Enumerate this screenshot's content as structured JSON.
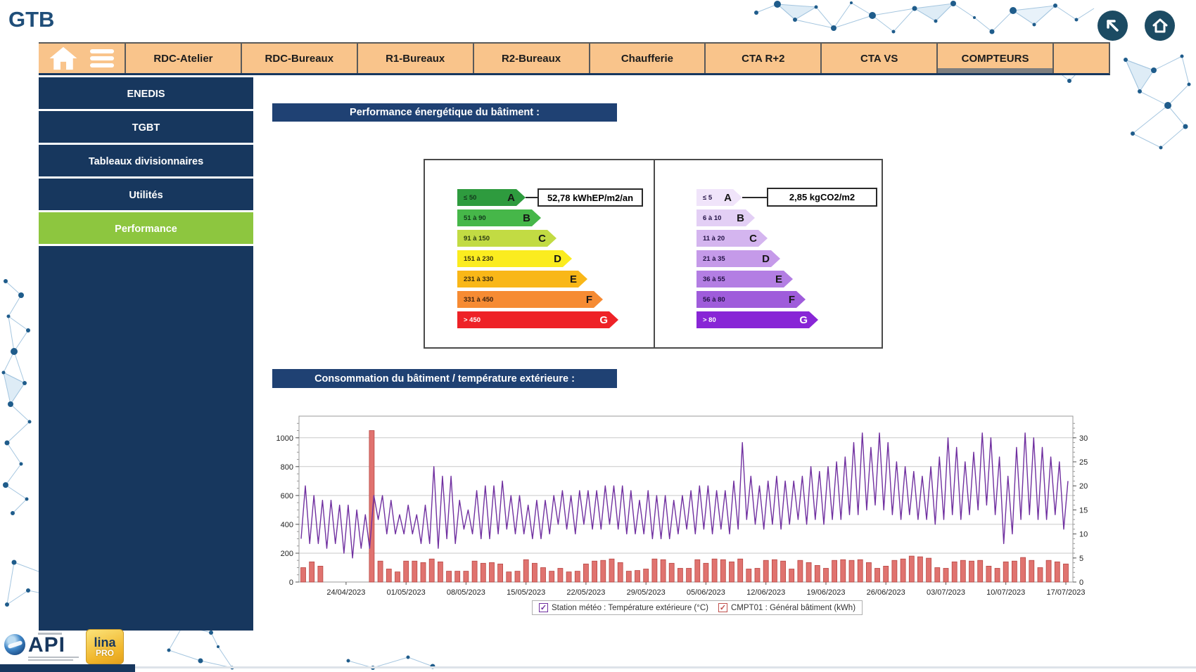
{
  "app": {
    "title": "GTB"
  },
  "top_buttons": {
    "back_icon": "arrow-up-left",
    "home_icon": "house"
  },
  "topbar": {
    "tabs": [
      {
        "label": "RDC-Atelier",
        "active": false
      },
      {
        "label": "RDC-Bureaux",
        "active": false
      },
      {
        "label": "R1-Bureaux",
        "active": false
      },
      {
        "label": "R2-Bureaux",
        "active": false
      },
      {
        "label": "Chaufferie",
        "active": false
      },
      {
        "label": "CTA R+2",
        "active": false
      },
      {
        "label": "CTA VS",
        "active": false
      },
      {
        "label": "COMPTEURS",
        "active": true
      }
    ]
  },
  "sidebar": {
    "items": [
      {
        "label": "ENEDIS",
        "active": false
      },
      {
        "label": "TGBT",
        "active": false
      },
      {
        "label": "Tableaux divisionnaires",
        "active": false
      },
      {
        "label": "Utilités",
        "active": false
      },
      {
        "label": "Performance",
        "active": true
      }
    ],
    "active_color": "#8DC63F"
  },
  "sections": {
    "energy_header": "Performance énergétique du bâtiment :",
    "consumption_header": "Consommation du bâtiment / température extérieure :"
  },
  "energy_scale": {
    "value_label": "52,78 kWhEP/m2/an",
    "classes": [
      {
        "range": "≤ 50",
        "letter": "A",
        "color": "#2E9B3E",
        "text": "#123A1C"
      },
      {
        "range": "51 à 90",
        "letter": "B",
        "color": "#46B749",
        "text": "#123A1C"
      },
      {
        "range": "91 à 150",
        "letter": "C",
        "color": "#C2DB43",
        "text": "#2A3A12"
      },
      {
        "range": "151 à 230",
        "letter": "D",
        "color": "#FBEC1F",
        "text": "#3A3410"
      },
      {
        "range": "231 à 330",
        "letter": "E",
        "color": "#F9B718",
        "text": "#3A2C10"
      },
      {
        "range": "331 à 450",
        "letter": "F",
        "color": "#F68B33",
        "text": "#3A2210"
      },
      {
        "range": "> 450",
        "letter": "G",
        "color": "#EE2227",
        "text": "#FFFFFF"
      }
    ]
  },
  "co2_scale": {
    "value_label": "2,85 kgCO2/m2",
    "classes": [
      {
        "range": "≤ 5",
        "letter": "A",
        "color": "#F0E4FA",
        "text": "#241347"
      },
      {
        "range": "6 à 10",
        "letter": "B",
        "color": "#E3CFF5",
        "text": "#241347"
      },
      {
        "range": "11 à 20",
        "letter": "C",
        "color": "#D4B5EF",
        "text": "#241347"
      },
      {
        "range": "21 à 35",
        "letter": "D",
        "color": "#C59AE9",
        "text": "#241347"
      },
      {
        "range": "36 à 55",
        "letter": "E",
        "color": "#B37EE3",
        "text": "#241347"
      },
      {
        "range": "56 à 80",
        "letter": "F",
        "color": "#9F5CDB",
        "text": "#241347"
      },
      {
        "range": "> 80",
        "letter": "G",
        "color": "#8826D6",
        "text": "#FFFFFF"
      }
    ]
  },
  "chart_data": {
    "type": "mixed",
    "title": "Consommation du bâtiment / température extérieure",
    "x_start_date": "19/04/2023",
    "x_interval_days": 1,
    "x_tick_labels": [
      "24/04/2023",
      "01/05/2023",
      "08/05/2023",
      "15/05/2023",
      "22/05/2023",
      "29/05/2023",
      "05/06/2023",
      "12/06/2023",
      "19/06/2023",
      "26/06/2023",
      "03/07/2023",
      "10/07/2023",
      "17/07/2023"
    ],
    "tick_first_index": 5,
    "tick_step": 7,
    "left_axis": {
      "ticks": [
        0,
        200,
        400,
        600,
        800,
        1000
      ],
      "grid": [
        200,
        400,
        600,
        800,
        1000
      ],
      "range": [
        0,
        1150
      ],
      "unit": "kWh"
    },
    "right_axis": {
      "ticks": [
        0,
        5,
        10,
        15,
        20,
        25,
        30
      ],
      "range": [
        0,
        34.5
      ],
      "unit": "°C"
    },
    "series": [
      {
        "name": "Station météo : Température extérieure (°C)",
        "type": "line",
        "axis": "right",
        "color": "#7030A0",
        "check_color": "#7030A0",
        "checked": true,
        "daily_min": [
          9,
          8,
          8,
          7,
          8,
          6,
          5,
          7,
          7,
          13,
          10,
          10,
          10,
          10,
          8,
          8,
          7,
          9,
          8,
          11,
          10,
          9,
          9,
          10,
          11,
          10,
          10,
          9,
          9,
          10,
          12,
          11,
          10,
          12,
          11,
          11,
          12,
          11,
          10,
          10,
          10,
          9,
          9,
          9,
          10,
          11,
          10,
          11,
          10,
          11,
          10,
          11,
          13,
          12,
          11,
          12,
          11,
          12,
          13,
          12,
          13,
          12,
          13,
          13,
          14,
          14,
          15,
          16,
          15,
          14,
          13,
          14,
          13,
          13,
          12,
          13,
          14,
          13,
          14,
          15,
          16,
          14,
          8,
          10,
          13,
          14,
          13,
          13,
          14,
          11
        ],
        "daily_max": [
          20,
          18,
          17,
          17,
          16,
          16,
          15,
          14,
          18,
          18,
          17,
          14,
          16,
          14,
          16,
          24,
          22,
          22,
          17,
          15,
          19,
          20,
          20,
          21,
          18,
          18,
          16,
          17,
          17,
          18,
          19,
          18,
          19,
          19,
          19,
          20,
          20,
          20,
          19,
          17,
          19,
          18,
          18,
          17,
          18,
          19,
          20,
          20,
          19,
          19,
          21,
          29,
          22,
          20,
          21,
          22,
          21,
          21,
          22,
          24,
          23,
          24,
          25,
          26,
          29,
          31,
          28,
          31,
          29,
          25,
          24,
          23,
          22,
          24,
          26,
          30,
          28,
          25,
          27,
          31,
          30,
          26,
          22,
          28,
          31,
          30,
          28,
          26,
          25,
          21
        ]
      },
      {
        "name": "CMPT01 : Général bâtiment (kWh)",
        "type": "bar",
        "axis": "left",
        "color": "#E0736F",
        "border_color": "#B94643",
        "check_color": "#C0504D",
        "checked": true,
        "values": [
          100,
          140,
          110,
          null,
          null,
          null,
          null,
          null,
          1050,
          145,
          90,
          70,
          145,
          145,
          135,
          160,
          140,
          75,
          75,
          75,
          145,
          130,
          135,
          125,
          70,
          75,
          155,
          130,
          100,
          75,
          95,
          70,
          75,
          125,
          145,
          150,
          160,
          135,
          75,
          80,
          90,
          160,
          155,
          130,
          95,
          95,
          155,
          130,
          160,
          155,
          140,
          160,
          90,
          95,
          150,
          155,
          145,
          90,
          150,
          135,
          115,
          95,
          150,
          155,
          150,
          155,
          135,
          95,
          110,
          150,
          160,
          180,
          175,
          165,
          100,
          95,
          140,
          150,
          145,
          150,
          110,
          95,
          140,
          145,
          170,
          150,
          100,
          150,
          140,
          125
        ]
      }
    ],
    "legend_position": "bottom-center",
    "grid": true
  },
  "footer": {
    "api_logo": "API",
    "lina_logo": "lina",
    "lina_sub": "PRO"
  }
}
